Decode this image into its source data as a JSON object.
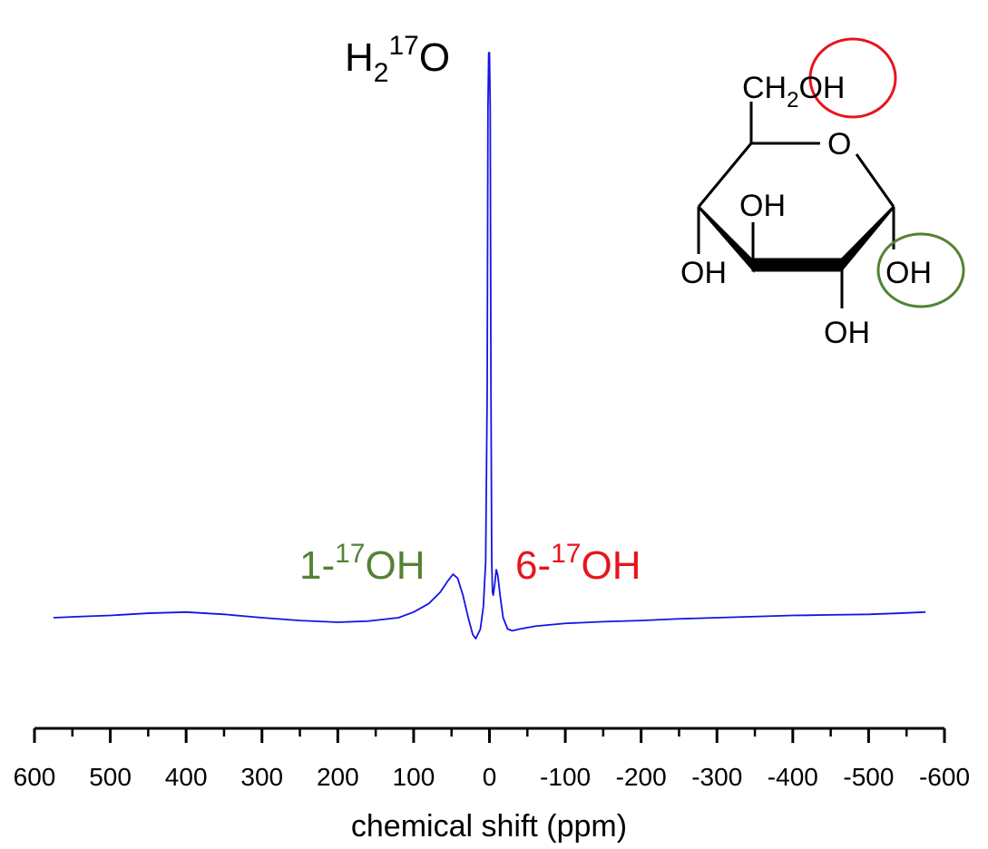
{
  "chart_data": {
    "type": "line",
    "xlabel": "chemical shift (ppm)",
    "xlim": [
      600,
      -600
    ],
    "xticks": [
      600,
      500,
      400,
      300,
      200,
      100,
      0,
      -100,
      -200,
      -300,
      -400,
      -500,
      -600
    ],
    "xminorticks": [
      550,
      450,
      350,
      250,
      150,
      50,
      -50,
      -150,
      -250,
      -350,
      -450,
      -550
    ],
    "ylim": [
      -20,
      105
    ],
    "series": [
      {
        "color": "#1414e6",
        "x": [
          575,
          540,
          500,
          450,
          400,
          350,
          300,
          250,
          200,
          160,
          120,
          100,
          80,
          65,
          55,
          48,
          42,
          35,
          28,
          22,
          18,
          12,
          8,
          5,
          3,
          2,
          1,
          0,
          -1,
          -2,
          -3,
          -4,
          -5,
          -7,
          -9,
          -11,
          -14,
          -18,
          -24,
          -30,
          -40,
          -60,
          -100,
          -150,
          -200,
          -250,
          -300,
          -350,
          -400,
          -450,
          -500,
          -540,
          -575
        ],
        "values": [
          0,
          0.2,
          0.4,
          0.8,
          1,
          0.6,
          0,
          -0.5,
          -0.8,
          -0.6,
          0,
          1,
          2.5,
          4.5,
          6.5,
          7.7,
          7,
          4,
          0,
          -3,
          -3.7,
          -2,
          2,
          10,
          40,
          90,
          100,
          100,
          90,
          40,
          10,
          4.5,
          4,
          6,
          8.5,
          7.5,
          4,
          0,
          -2,
          -2.3,
          -2,
          -1.5,
          -1,
          -0.7,
          -0.5,
          -0.2,
          0,
          0.2,
          0.4,
          0.5,
          0.6,
          0.8,
          1
        ]
      }
    ],
    "annotations": [
      {
        "parts": [
          "H",
          "2",
          "17",
          "O"
        ],
        "color": "#000000"
      },
      {
        "parts": [
          "1-",
          "17",
          "OH"
        ],
        "color": "#548235"
      },
      {
        "parts": [
          "6-",
          "17",
          "OH"
        ],
        "color": "#e8141c"
      }
    ],
    "structure_labels": [
      "CH",
      "2",
      "OH",
      "O",
      "OH",
      "OH",
      "OH",
      "OH"
    ]
  }
}
